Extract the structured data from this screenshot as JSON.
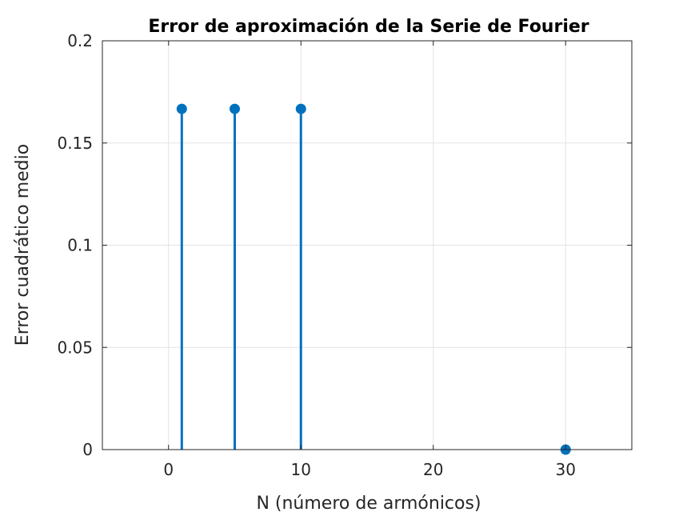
{
  "chart_data": {
    "type": "stem",
    "title": "Error de aproximación de la Serie de Fourier",
    "xlabel": "N (número de armónicos)",
    "ylabel": "Error cuadrático medio",
    "xlim": [
      -5,
      35
    ],
    "ylim": [
      0,
      0.2
    ],
    "x_ticks": [
      0,
      10,
      20,
      30
    ],
    "y_ticks": [
      0,
      0.05,
      0.1,
      0.15,
      0.2
    ],
    "x_tick_labels": [
      "0",
      "10",
      "20",
      "30"
    ],
    "y_tick_labels": [
      "0",
      "0.05",
      "0.1",
      "0.15",
      "0.2"
    ],
    "grid": true,
    "series": [
      {
        "color": "#0072bd",
        "x": [
          1,
          5,
          10,
          30
        ],
        "y": [
          0.1667,
          0.1667,
          0.1667,
          0
        ]
      }
    ]
  }
}
